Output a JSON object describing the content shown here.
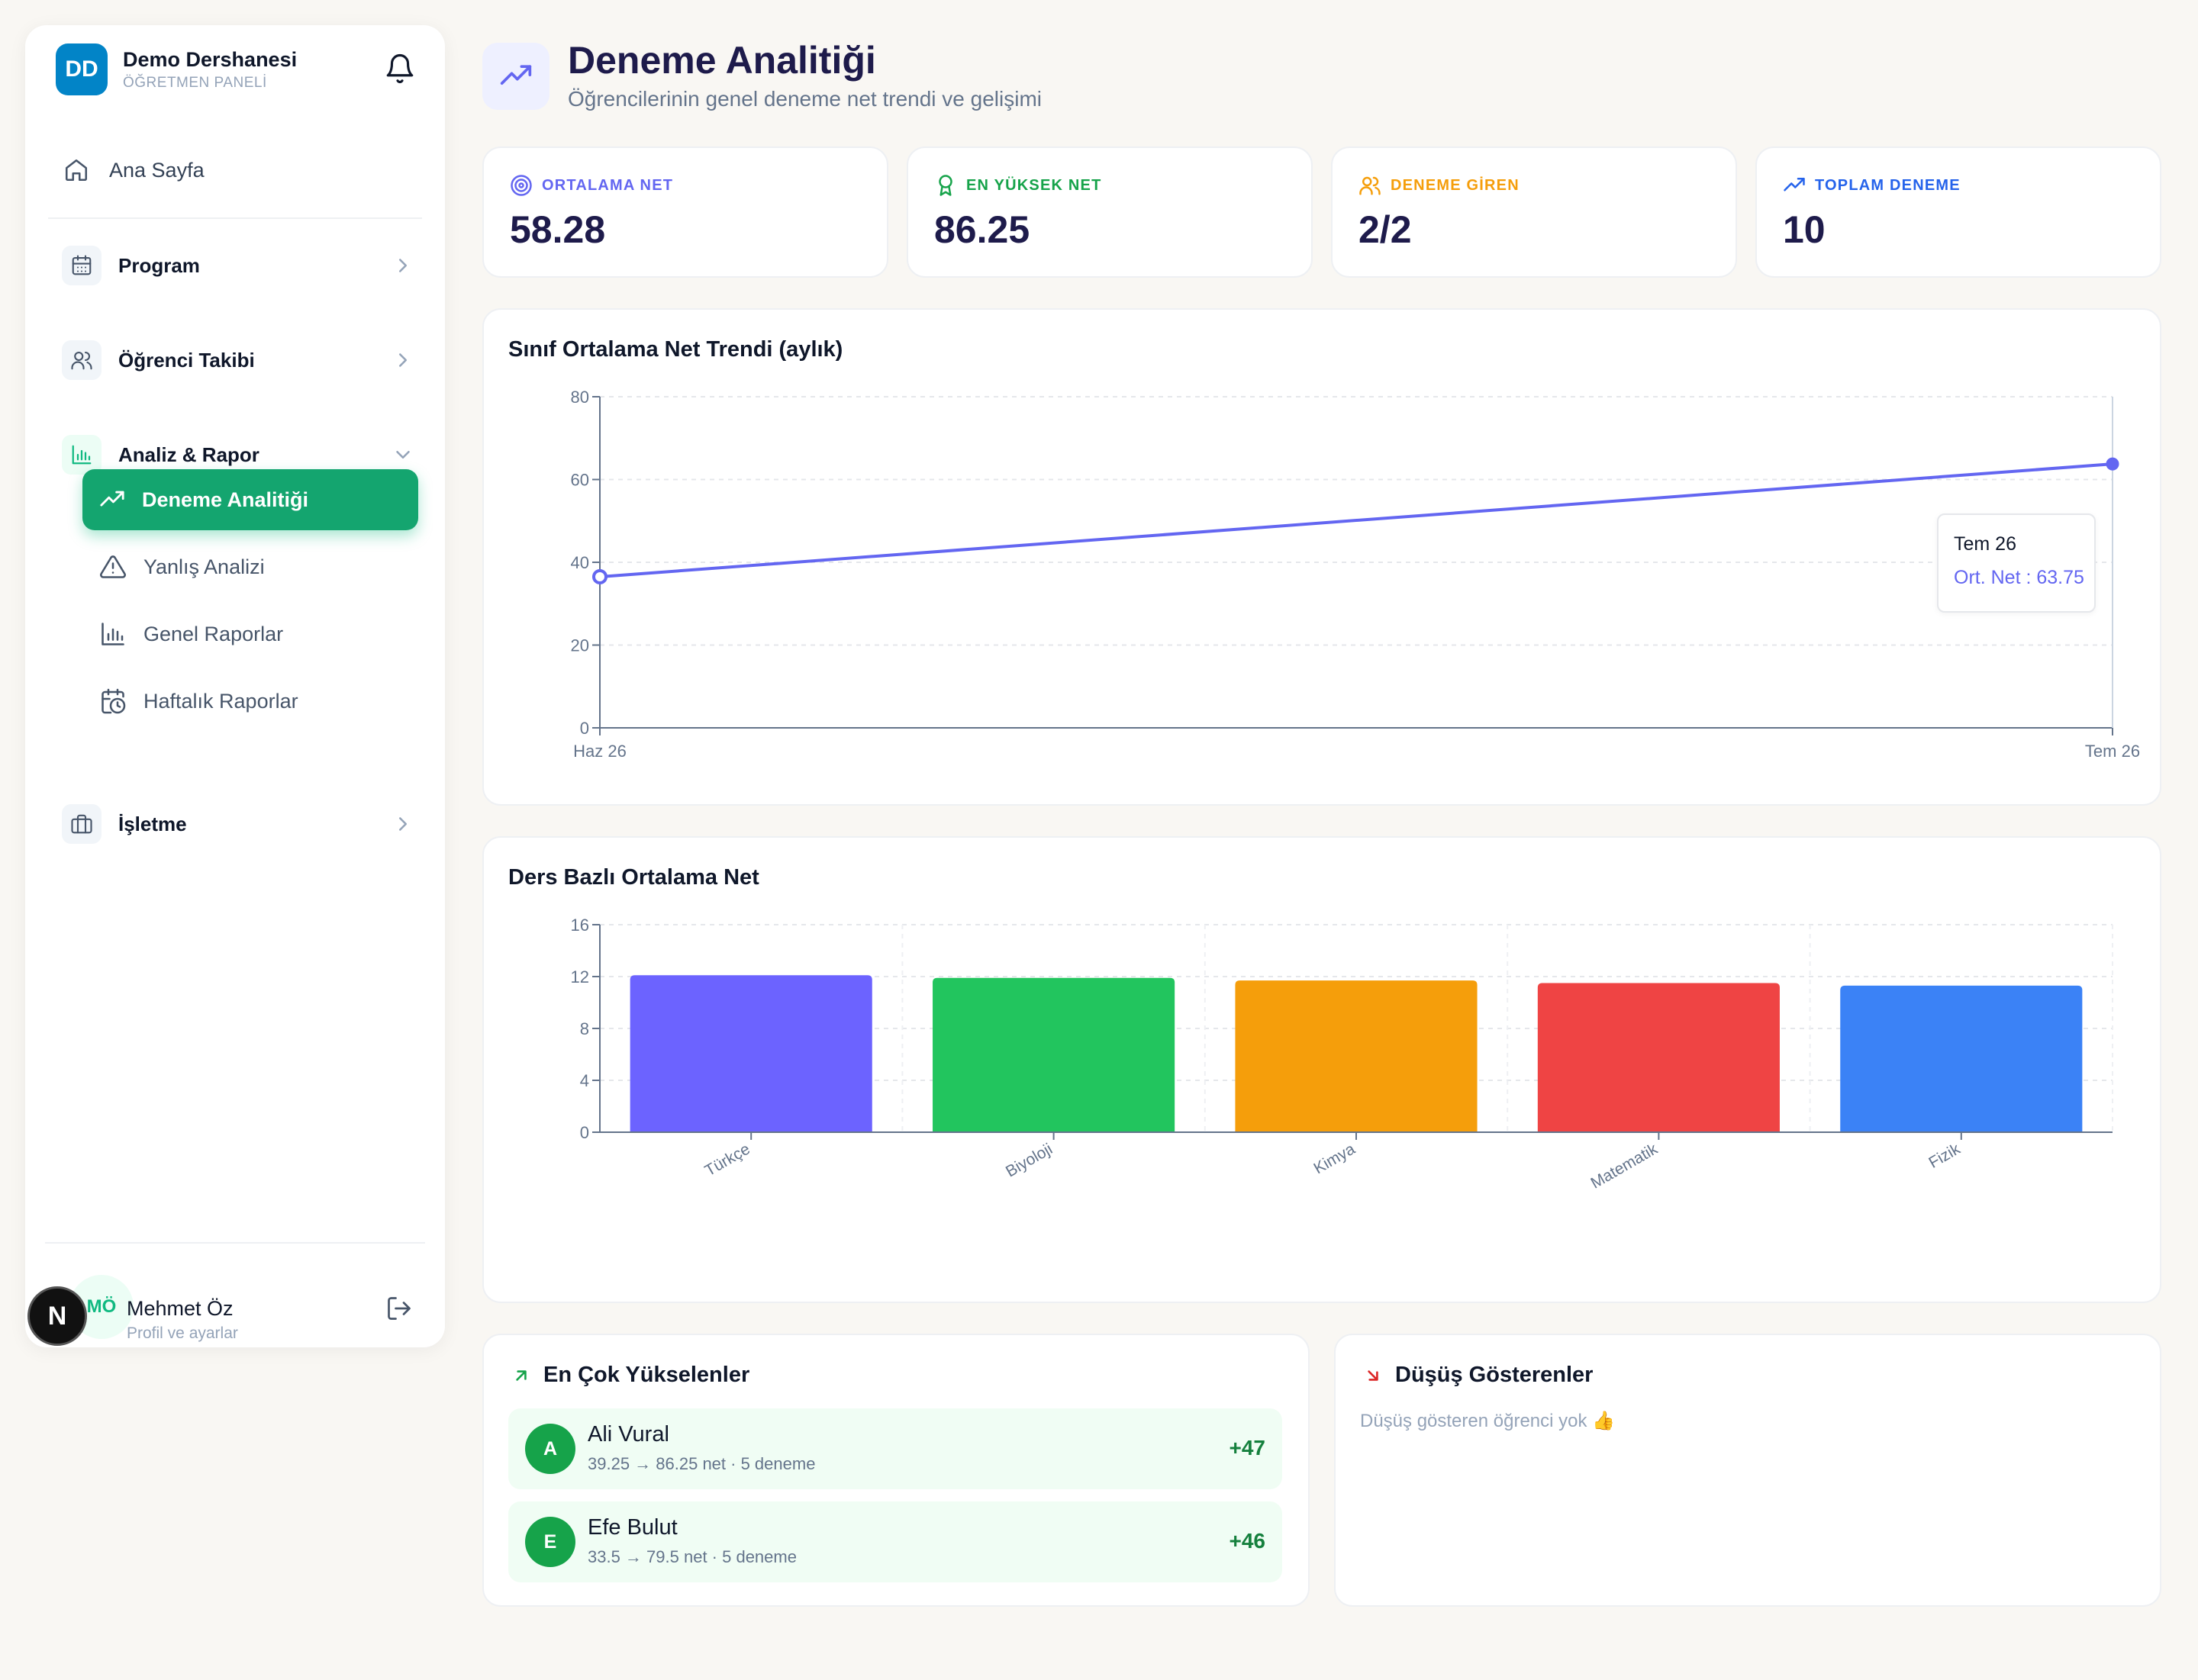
{
  "brand": {
    "initials": "DD",
    "name": "Demo Dershanesi",
    "subtitle": "ÖĞRETMEN PANELİ"
  },
  "nav": {
    "home": "Ana Sayfa",
    "groups": [
      {
        "label": "Program"
      },
      {
        "label": "Öğrenci Takibi"
      },
      {
        "label": "Analiz & Rapor",
        "expanded": true
      },
      {
        "label": "İşletme"
      }
    ],
    "analysis_items": [
      {
        "label": "Deneme Analitiği",
        "active": true
      },
      {
        "label": "Yanlış Analizi"
      },
      {
        "label": "Genel Raporlar"
      },
      {
        "label": "Haftalık Raporlar"
      }
    ]
  },
  "user": {
    "initials": "MÖ",
    "name": "Mehmet Öz",
    "subtitle": "Profil ve ayarlar"
  },
  "framework_badge": "N",
  "page": {
    "title": "Deneme Analitiği",
    "subtitle": "Öğrencilerinin genel deneme net trendi ve gelişimi"
  },
  "stats": [
    {
      "label": "ORTALAMA NET",
      "value": "58.28",
      "color": "#6366f1",
      "icon": "target-icon"
    },
    {
      "label": "EN YÜKSEK NET",
      "value": "86.25",
      "color": "#16a34a",
      "icon": "award-icon"
    },
    {
      "label": "DENEME GİREN",
      "value": "2/2",
      "color": "#f59e0b",
      "icon": "users-icon"
    },
    {
      "label": "TOPLAM DENEME",
      "value": "10",
      "color": "#2563eb",
      "icon": "trending-up-icon"
    }
  ],
  "trend_panel": {
    "title": "Sınıf Ortalama Net Trendi (aylık)"
  },
  "tooltip": {
    "title": "Tem 26",
    "label": "Ort. Net : 63.75"
  },
  "subject_panel": {
    "title": "Ders Bazlı Ortalama Net"
  },
  "chart_data": [
    {
      "type": "line",
      "title": "Sınıf Ortalama Net Trendi (aylık)",
      "x": [
        "Haz 26",
        "Tem 26"
      ],
      "series": [
        {
          "name": "Ort. Net",
          "values": [
            36.5,
            63.75
          ],
          "color": "#6366f1"
        }
      ],
      "ylim": [
        0,
        80
      ],
      "yticks": [
        0,
        20,
        40,
        60,
        80
      ],
      "grid": true
    },
    {
      "type": "bar",
      "title": "Ders Bazlı Ortalama Net",
      "categories": [
        "Türkçe",
        "Biyoloji",
        "Kimya",
        "Matematik",
        "Fizik"
      ],
      "values": [
        12.1,
        11.9,
        11.7,
        11.5,
        11.3
      ],
      "colors": [
        "#6c63ff",
        "#22c55e",
        "#f59e0b",
        "#ef4444",
        "#3b82f6"
      ],
      "ylim": [
        0,
        16
      ],
      "yticks": [
        0,
        4,
        8,
        12,
        16
      ],
      "grid": true
    }
  ],
  "risers": {
    "title": "En Çok Yükselenler",
    "items": [
      {
        "initial": "A",
        "name": "Ali Vural",
        "detail": "39.25 → 86.25 net · 5 deneme",
        "delta": "+47"
      },
      {
        "initial": "E",
        "name": "Efe Bulut",
        "detail": "33.5 → 79.5 net · 5 deneme",
        "delta": "+46"
      }
    ]
  },
  "fallers": {
    "title": "Düşüş Gösterenler",
    "empty": "Düşüş gösteren öğrenci yok 👍"
  }
}
